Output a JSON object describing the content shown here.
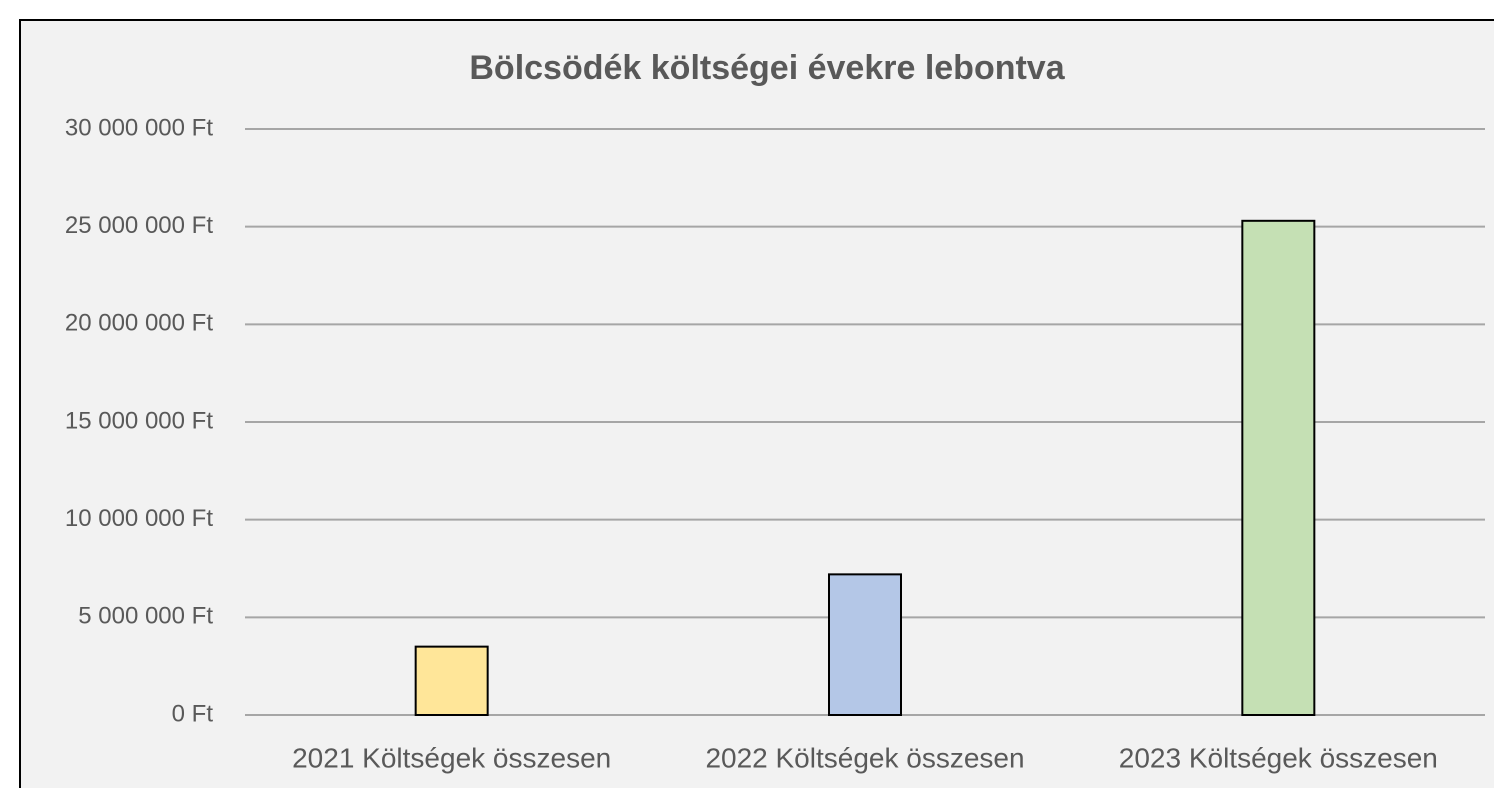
{
  "chart_data": {
    "type": "bar",
    "title": "Bölcsödék költségei évekre lebontva",
    "categories": [
      "2021 Költségek összesen",
      "2022 Költségek összesen",
      "2023 Költségek összesen"
    ],
    "values": [
      3500000,
      7200000,
      25300000
    ],
    "colors": [
      "#ffe699",
      "#b4c7e7",
      "#c5e0b4"
    ],
    "ylim": [
      0,
      30000000
    ],
    "yticks": [
      {
        "value": 0,
        "label": "0 Ft"
      },
      {
        "value": 5000000,
        "label": "5 000 000 Ft"
      },
      {
        "value": 10000000,
        "label": "10 000 000 Ft"
      },
      {
        "value": 15000000,
        "label": "15 000 000 Ft"
      },
      {
        "value": 20000000,
        "label": "20 000 000 Ft"
      },
      {
        "value": 25000000,
        "label": "25 000 000 Ft"
      },
      {
        "value": 30000000,
        "label": "30 000 000 Ft"
      }
    ],
    "grid": true
  }
}
